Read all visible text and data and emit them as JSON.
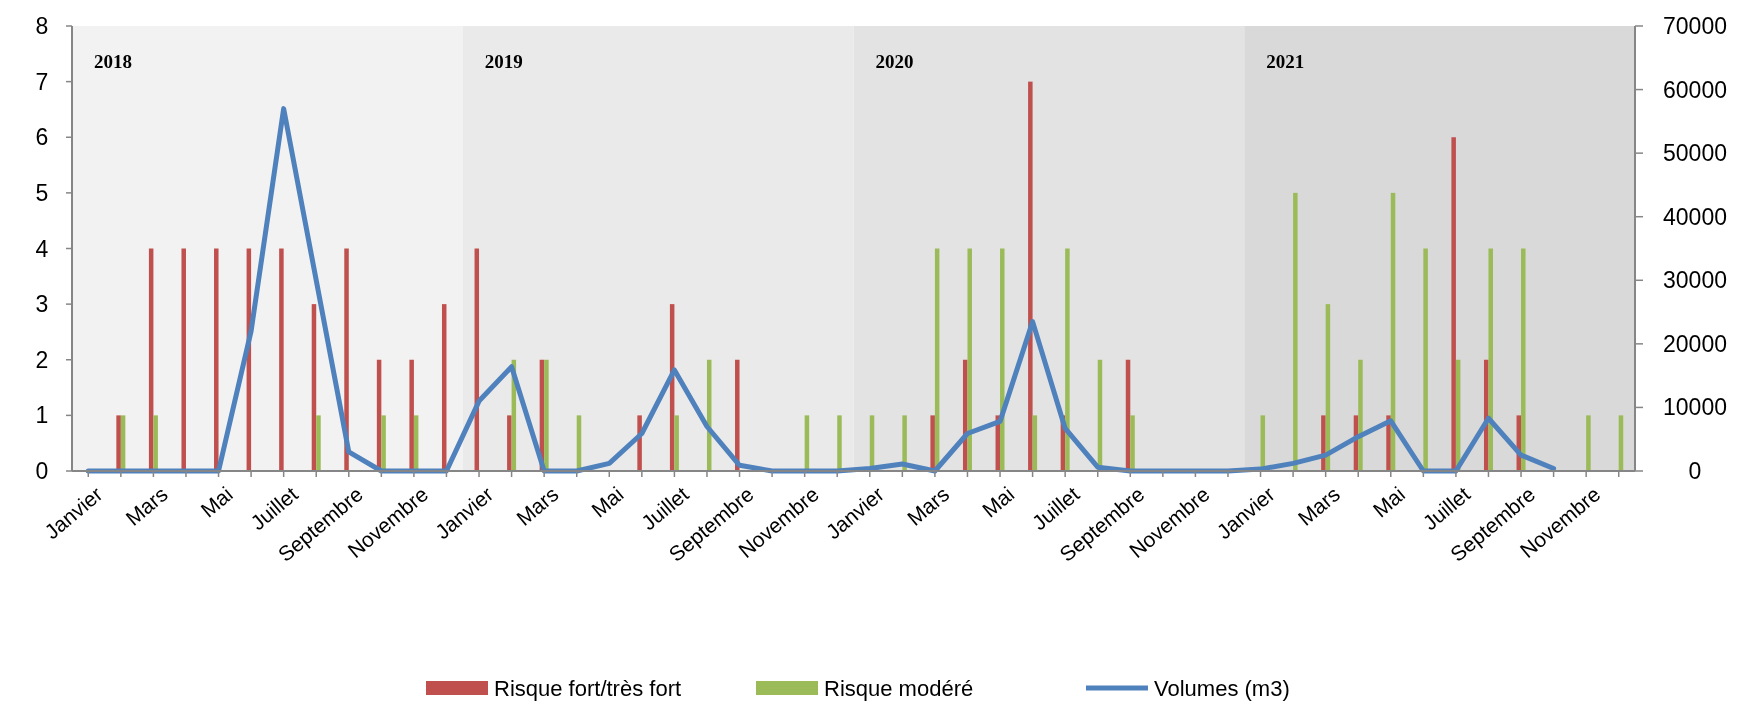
{
  "chart_data": {
    "type": "bar",
    "categories": [
      "Janvier",
      null,
      "Mars",
      null,
      "Mai",
      null,
      "Juillet",
      null,
      "Septembre",
      null,
      "Novembre",
      null,
      "Janvier",
      null,
      "Mars",
      null,
      "Mai",
      null,
      "Juillet",
      null,
      "Septembre",
      null,
      "Novembre",
      null,
      "Janvier",
      null,
      "Mars",
      null,
      "Mai",
      null,
      "Juillet",
      null,
      "Septembre",
      null,
      "Novembre",
      null,
      "Janvier",
      null,
      "Mars",
      null,
      "Mai",
      null,
      "Juillet",
      null,
      "Septembre",
      null,
      "Novembre",
      null
    ],
    "series": [
      {
        "name": "Risque fort/très fort",
        "color": "#c0504d",
        "values": [
          0,
          1,
          4,
          4,
          4,
          4,
          4,
          3,
          4,
          2,
          2,
          3,
          4,
          1,
          2,
          0,
          0,
          1,
          3,
          0,
          2,
          0,
          0,
          0,
          0,
          0,
          1,
          2,
          1,
          7,
          1,
          0,
          2,
          0,
          0,
          0,
          0,
          0,
          1,
          1,
          1,
          0,
          6,
          2,
          1,
          0,
          0,
          0
        ]
      },
      {
        "name": "Risque modéré",
        "color": "#9bbb59",
        "values": [
          0,
          1,
          1,
          0,
          0,
          0,
          0,
          1,
          0,
          1,
          1,
          0,
          0,
          2,
          2,
          1,
          0,
          0,
          1,
          2,
          0,
          0,
          1,
          1,
          1,
          1,
          4,
          4,
          4,
          1,
          4,
          2,
          1,
          0,
          0,
          0,
          1,
          5,
          3,
          2,
          5,
          4,
          2,
          4,
          4,
          0,
          1,
          1
        ]
      },
      {
        "name": "Volumes (m3)",
        "type": "line",
        "axis": "y2",
        "color": "#4f81bd",
        "values": [
          0,
          0,
          0,
          0,
          0,
          22000,
          57000,
          30000,
          3000,
          0,
          0,
          0,
          11000,
          16400,
          0,
          0,
          1200,
          5900,
          15900,
          7000,
          900,
          0,
          0,
          0,
          400,
          1100,
          0,
          5900,
          7800,
          23500,
          6700,
          600,
          0,
          0,
          0,
          0,
          300,
          1200,
          2500,
          5400,
          7900,
          0,
          0,
          8300,
          2500,
          400,
          null,
          null
        ]
      }
    ],
    "ylim": [
      0,
      8
    ],
    "yticks": [
      0,
      1,
      2,
      3,
      4,
      5,
      6,
      7,
      8
    ],
    "y2lim": [
      0,
      70000
    ],
    "y2ticks": [
      0,
      10000,
      20000,
      30000,
      40000,
      50000,
      60000,
      70000
    ],
    "annotations": [
      "2018",
      "2019",
      "2020",
      "2021"
    ],
    "grid": false,
    "legend": "bottom"
  }
}
